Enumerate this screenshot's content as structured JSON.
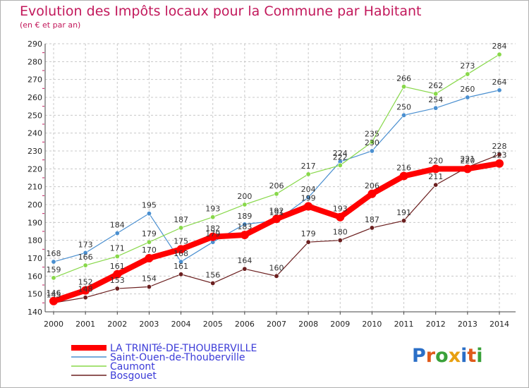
{
  "chart_data": {
    "type": "line",
    "title": "Evolution des Impôts locaux pour la Commune par Habitant",
    "subtitle": "(en € et par an)",
    "xlabel": "",
    "ylabel": "",
    "ylim": [
      140,
      290
    ],
    "yticks": [
      140,
      150,
      160,
      170,
      180,
      190,
      200,
      210,
      220,
      230,
      240,
      250,
      260,
      270,
      280,
      290
    ],
    "x": [
      "2000",
      "2001",
      "2002",
      "2003",
      "2004",
      "2005",
      "2006",
      "2007",
      "2008",
      "2009",
      "2010",
      "2011",
      "2012",
      "2013",
      "2014"
    ],
    "grid": "dashed",
    "series": [
      {
        "name": "LA TRINITé-DE-THOUBERVILLE",
        "color": "#ff0000",
        "values": [
          146,
          152,
          161,
          170,
          175,
          182,
          183,
          192,
          199,
          193,
          206,
          216,
          220,
          220,
          223
        ]
      },
      {
        "name": "Saint-Ouen-de-Thouberville",
        "color": "#4a8fd0",
        "values": [
          168,
          173,
          184,
          195,
          168,
          179,
          189,
          191,
          204,
          224,
          230,
          250,
          254,
          260,
          264
        ]
      },
      {
        "name": "Caumont",
        "color": "#88d84a",
        "values": [
          159,
          166,
          171,
          179,
          187,
          193,
          200,
          206,
          217,
          222,
          235,
          266,
          262,
          273,
          284
        ]
      },
      {
        "name": "Bosgouet",
        "color": "#6b1f1f",
        "values": [
          145,
          148,
          153,
          154,
          161,
          156,
          164,
          160,
          179,
          180,
          187,
          191,
          211,
          221,
          228
        ]
      }
    ]
  },
  "logo": {
    "letters": [
      "P",
      "r",
      "o",
      "x",
      "i",
      "t",
      "i"
    ],
    "colors": [
      "#2b6fc7",
      "#e05a1a",
      "#3aa13a",
      "#e8a010",
      "#2b6fc7",
      "#e05a1a",
      "#3aa13a"
    ]
  }
}
